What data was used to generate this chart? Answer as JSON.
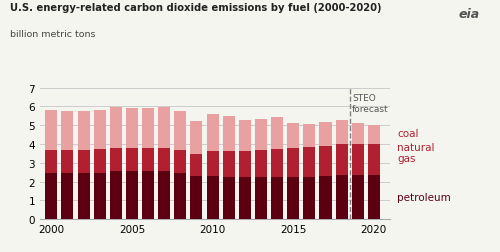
{
  "title": "U.S. energy-related carbon dioxide emissions by fuel (2000-2020)",
  "subtitle": "billion metric tons",
  "years": [
    2000,
    2001,
    2002,
    2003,
    2004,
    2005,
    2006,
    2007,
    2008,
    2009,
    2010,
    2011,
    2012,
    2013,
    2014,
    2015,
    2016,
    2017,
    2018,
    2019,
    2020
  ],
  "petroleum": [
    2.47,
    2.47,
    2.47,
    2.47,
    2.56,
    2.58,
    2.57,
    2.58,
    2.44,
    2.28,
    2.27,
    2.24,
    2.22,
    2.22,
    2.25,
    2.22,
    2.22,
    2.28,
    2.36,
    2.37,
    2.36
  ],
  "natural_gas": [
    1.22,
    1.22,
    1.22,
    1.27,
    1.23,
    1.18,
    1.22,
    1.22,
    1.24,
    1.18,
    1.37,
    1.38,
    1.42,
    1.46,
    1.5,
    1.56,
    1.6,
    1.6,
    1.65,
    1.65,
    1.65
  ],
  "coal": [
    2.1,
    2.07,
    2.06,
    2.09,
    2.17,
    2.17,
    2.14,
    2.15,
    2.08,
    1.75,
    1.93,
    1.87,
    1.65,
    1.65,
    1.7,
    1.33,
    1.24,
    1.3,
    1.27,
    1.07,
    1.0
  ],
  "forecast_start_year": 2019,
  "color_petroleum": "#5c0011",
  "color_natural_gas": "#b02030",
  "color_coal": "#e8a0a0",
  "color_background": "#f5f5f0",
  "color_grid": "#cccccc",
  "ylim": [
    0,
    7
  ],
  "yticks": [
    0,
    1,
    2,
    3,
    4,
    5,
    6,
    7
  ],
  "steo_label": "STEO\nforecast",
  "legend_coal": "coal",
  "legend_natural_gas": "natural\ngas",
  "legend_petroleum": "petroleum",
  "xticks": [
    2000,
    2005,
    2010,
    2015,
    2020
  ]
}
